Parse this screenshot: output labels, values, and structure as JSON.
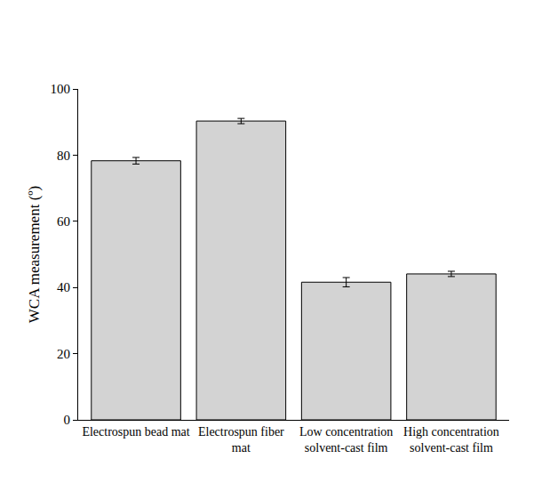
{
  "chart_data": {
    "type": "bar",
    "categories": [
      "Electrospun bead mat",
      "Electrospun fiber mat",
      "Low concentration solvent-cast film",
      "High concentration solvent-cast film"
    ],
    "values": [
      78.3,
      90.3,
      41.6,
      44.1
    ],
    "errors": [
      1.0,
      0.8,
      1.4,
      0.8
    ],
    "color": "#d3d3d3",
    "ylabel": "WCA measurement (º)",
    "ylim": [
      0,
      100
    ],
    "yticks": [
      0,
      20,
      40,
      60,
      80,
      100
    ],
    "grid": false
  }
}
